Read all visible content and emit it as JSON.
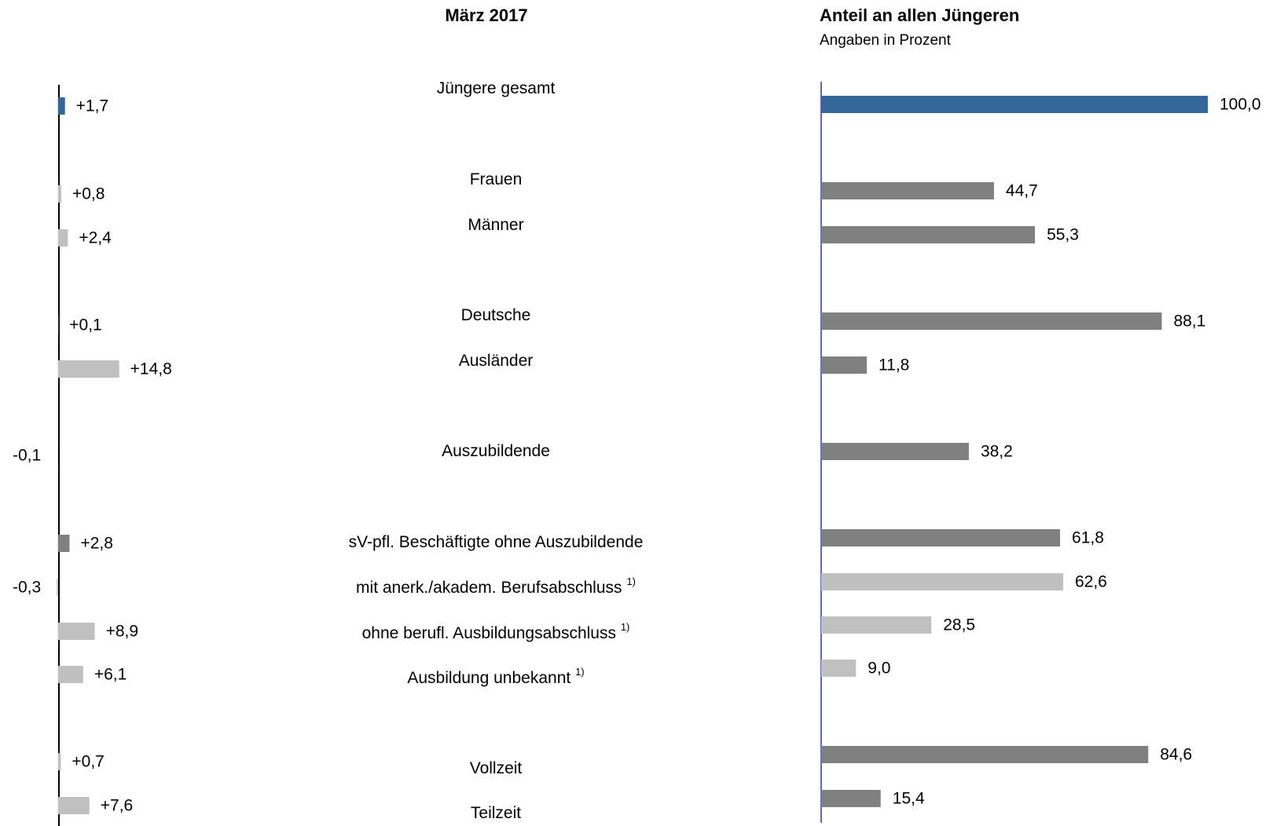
{
  "chart_data": [
    {
      "type": "bar",
      "orientation": "horizontal",
      "title": "März 2017",
      "categories": [
        "Jüngere gesamt",
        "Frauen",
        "Männer",
        "Deutsche",
        "Ausländer",
        "Auszubildende",
        "sV-pfl. Beschäftigte  ohne Auszubildende",
        "mit anerk./akadem. Berufsabschluss",
        "ohne  berufl. Ausbildungsabschluss",
        "Ausbildung unbekannt",
        "Vollzeit",
        "Teilzeit"
      ],
      "category_notes": [
        null,
        null,
        null,
        null,
        null,
        null,
        null,
        "1)",
        "1)",
        "1)",
        null,
        null
      ],
      "values": [
        1.7,
        0.8,
        2.4,
        0.1,
        14.8,
        -0.1,
        2.8,
        -0.3,
        8.9,
        6.1,
        0.7,
        7.6
      ],
      "value_labels": [
        "+1,7",
        "+0,8",
        "+2,4",
        "+0,1",
        "+14,8",
        "-0,1",
        "+2,8",
        "-0,3",
        "+8,9",
        "+6,1",
        "+0,7",
        "+7,6"
      ],
      "colors": [
        "#336699",
        "#c0c0c0",
        "#c0c0c0",
        "#c0c0c0",
        "#c0c0c0",
        "#c0c0c0",
        "#808080",
        "#c0c0c0",
        "#c0c0c0",
        "#c0c0c0",
        "#c0c0c0",
        "#c0c0c0"
      ],
      "xlim": [
        -14,
        16
      ]
    },
    {
      "type": "bar",
      "orientation": "horizontal",
      "title": "Anteil an allen Jüngeren",
      "subtitle": "Angaben in Prozent",
      "values": [
        100.0,
        44.7,
        55.3,
        88.1,
        11.8,
        38.2,
        61.8,
        62.6,
        28.5,
        9.0,
        84.6,
        15.4
      ],
      "value_labels": [
        "100,0",
        "44,7",
        "55,3",
        "88,1",
        "11,8",
        "38,2",
        "61,8",
        "62,6",
        "28,5",
        "9,0",
        "84,6",
        "15,4"
      ],
      "colors": [
        "#336699",
        "#808080",
        "#808080",
        "#808080",
        "#808080",
        "#808080",
        "#808080",
        "#c0c0c0",
        "#c0c0c0",
        "#c0c0c0",
        "#808080",
        "#808080"
      ],
      "xlim": [
        0,
        100
      ]
    }
  ]
}
